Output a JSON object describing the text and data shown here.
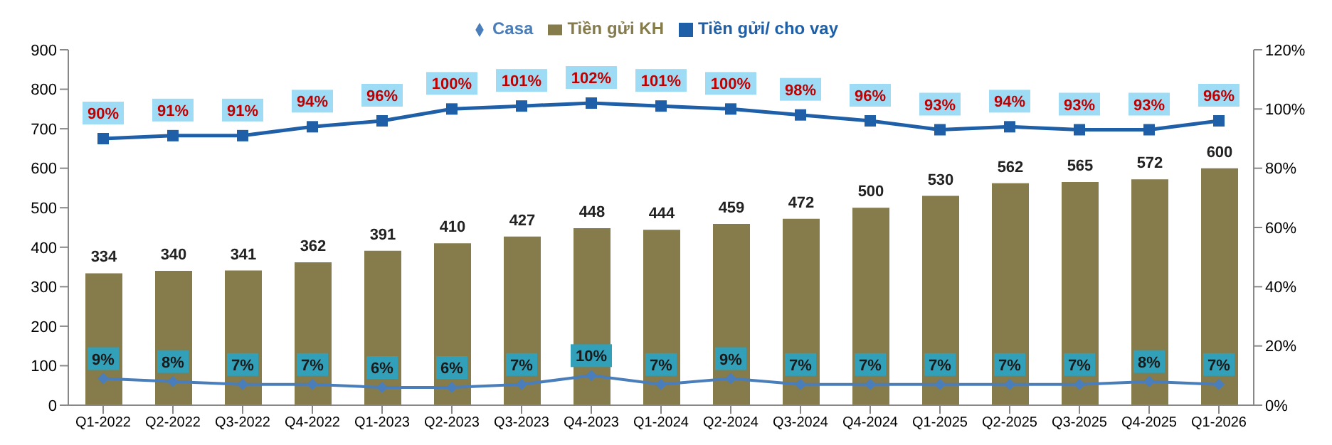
{
  "chart_data": {
    "type": "bar",
    "categories": [
      "Q1-2022",
      "Q2-2022",
      "Q3-2022",
      "Q4-2022",
      "Q1-2023",
      "Q2-2023",
      "Q3-2023",
      "Q4-2023",
      "Q1-2024",
      "Q2-2024",
      "Q3-2024",
      "Q4-2024",
      "Q1-2025",
      "Q2-2025",
      "Q3-2025",
      "Q4-2025",
      "Q1-2026"
    ],
    "series": [
      {
        "name": "Tiền gửi KH",
        "color": "#857b4b",
        "values": [
          334,
          340,
          341,
          362,
          391,
          410,
          427,
          448,
          444,
          459,
          472,
          500,
          530,
          562,
          565,
          572,
          600
        ],
        "value_labels": [
          "334",
          "340",
          "341",
          "362",
          "391",
          "410",
          "427",
          "448",
          "444",
          "459",
          "472",
          "500",
          "530",
          "562",
          "565",
          "572",
          "600"
        ]
      },
      {
        "name": "Casa",
        "type": "line",
        "axis": "y2",
        "marker": "diamond",
        "color": "#4a7ebb",
        "values": [
          9,
          8,
          7,
          7,
          6,
          6,
          7,
          10,
          7,
          9,
          7,
          7,
          7,
          7,
          7,
          8,
          7
        ],
        "value_labels": [
          "9%",
          "8%",
          "7%",
          "7%",
          "6%",
          "6%",
          "7%",
          "10%",
          "7%",
          "9%",
          "7%",
          "7%",
          "7%",
          "7%",
          "7%",
          "8%",
          "7%"
        ]
      },
      {
        "name": "Tiền gửi/ cho vay",
        "type": "line",
        "axis": "y2",
        "marker": "square",
        "color": "#1f5fa8",
        "values": [
          90,
          91,
          91,
          94,
          96,
          100,
          101,
          102,
          101,
          100,
          98,
          96,
          93,
          94,
          93,
          93,
          96
        ],
        "value_labels": [
          "90%",
          "91%",
          "91%",
          "94%",
          "96%",
          "100%",
          "101%",
          "102%",
          "101%",
          "100%",
          "98%",
          "96%",
          "93%",
          "94%",
          "93%",
          "93%",
          "96%"
        ]
      }
    ],
    "ylim": [
      0,
      900
    ],
    "yticks": [
      0,
      100,
      200,
      300,
      400,
      500,
      600,
      700,
      800,
      900
    ],
    "y2lim": [
      0,
      120
    ],
    "y2ticks": [
      {
        "value": 0,
        "label": "0%"
      },
      {
        "value": 20,
        "label": "20%"
      },
      {
        "value": 40,
        "label": "40%"
      },
      {
        "value": 60,
        "label": "60%"
      },
      {
        "value": 80,
        "label": "80%"
      },
      {
        "value": 100,
        "label": "100%"
      },
      {
        "value": 120,
        "label": "120%"
      }
    ],
    "legend": "top",
    "grid": false
  }
}
